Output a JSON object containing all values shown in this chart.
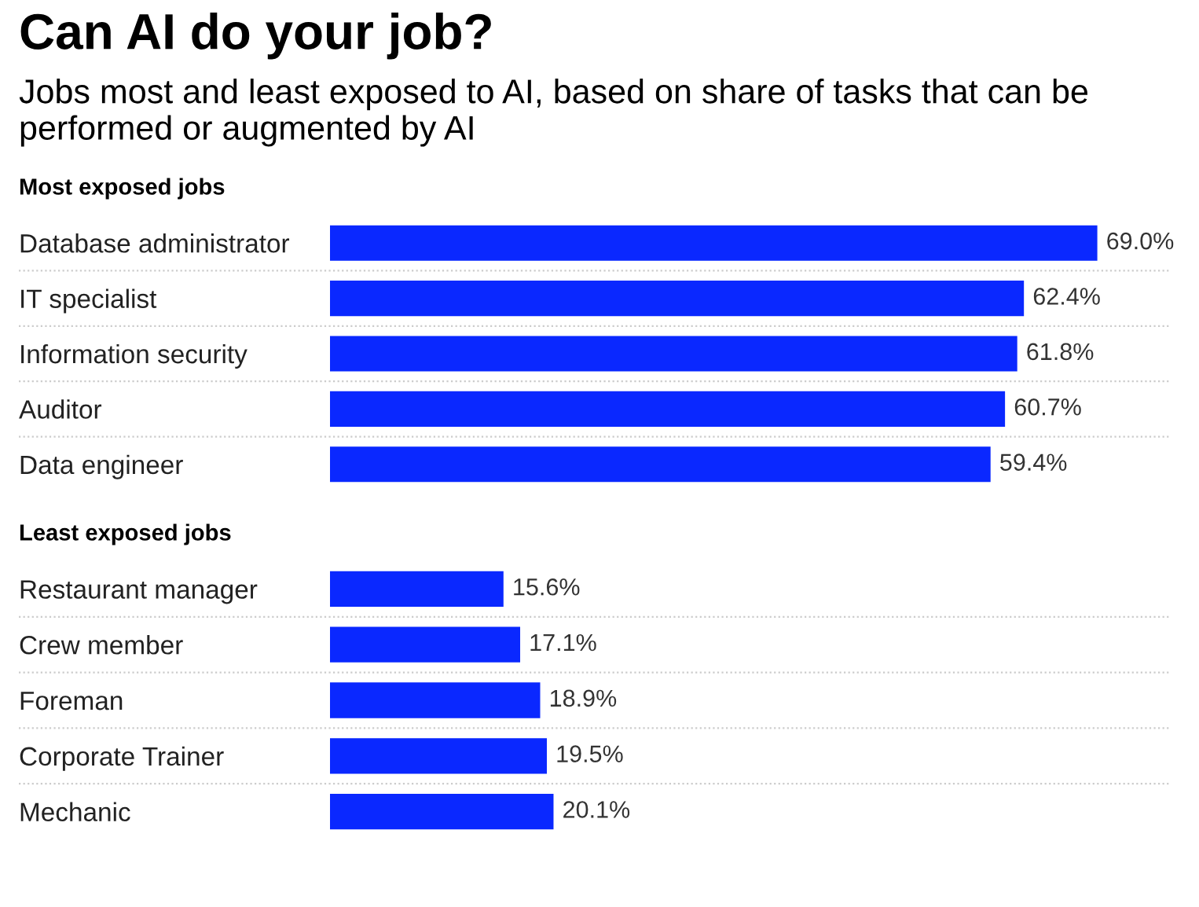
{
  "chart_data": [
    {
      "type": "bar",
      "orientation": "horizontal",
      "title": "Can AI do your job?",
      "subtitle": "Jobs most and least exposed to AI, based on share of tasks that can be performed or augmented by AI",
      "annotations": [
        "Most exposed jobs"
      ],
      "categories": [
        "Database administrator",
        "IT specialist",
        "Information security",
        "Auditor",
        "Data engineer"
      ],
      "values": [
        69.0,
        62.4,
        61.8,
        60.7,
        59.4
      ],
      "value_labels": [
        "69.0%",
        "62.4%",
        "61.8%",
        "60.7%",
        "59.4%"
      ],
      "color": "#0a28ff",
      "xlim": [
        0,
        75.6
      ],
      "tick_labels": "y",
      "grid": true
    },
    {
      "type": "bar",
      "orientation": "horizontal",
      "annotations": [
        "Least exposed jobs"
      ],
      "categories": [
        "Restaurant manager",
        "Crew member",
        "Foreman",
        "Corporate Trainer",
        "Mechanic"
      ],
      "values": [
        15.6,
        17.1,
        18.9,
        19.5,
        20.1
      ],
      "value_labels": [
        "15.6%",
        "17.1%",
        "18.9%",
        "19.5%",
        "20.1%"
      ],
      "color": "#0a28ff",
      "xlim": [
        0,
        75.6
      ],
      "tick_labels": "y",
      "grid": true
    }
  ]
}
